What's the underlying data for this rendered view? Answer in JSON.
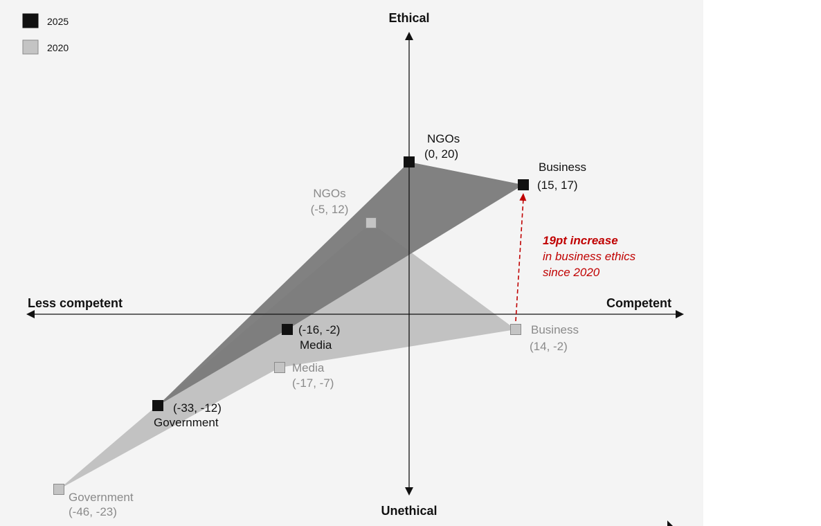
{
  "chart_data": {
    "type": "scatter",
    "title": "",
    "axes": {
      "x_positive": "Competent",
      "x_negative": "Less competent",
      "y_positive": "Ethical",
      "y_negative": "Unethical"
    },
    "xlim": [
      -50,
      35
    ],
    "ylim": [
      -26,
      35
    ],
    "grid": false,
    "legend": "top-left",
    "series": [
      {
        "name": "2025",
        "color": "#111111",
        "fill": "#7a7a7a",
        "points": [
          {
            "label": "NGOs",
            "coord": "(0, 20)",
            "x": 0,
            "y": 20
          },
          {
            "label": "Business",
            "coord": "(15, 17)",
            "x": 15,
            "y": 17
          },
          {
            "label": "Media",
            "coord": "(-16, -2)",
            "x": -16,
            "y": -2
          },
          {
            "label": "Government",
            "coord": "(-33, -12)",
            "x": -33,
            "y": -12
          }
        ]
      },
      {
        "name": "2020",
        "color": "#c4c4c4",
        "fill": "#bfbfbf",
        "points": [
          {
            "label": "NGOs",
            "coord": "(-5, 12)",
            "x": -5,
            "y": 12
          },
          {
            "label": "Business",
            "coord": "(14, -2)",
            "x": 14,
            "y": -2
          },
          {
            "label": "Media",
            "coord": "(-17, -7)",
            "x": -17,
            "y": -7
          },
          {
            "label": "Government",
            "coord": "(-46, -23)",
            "x": -46,
            "y": -23
          }
        ]
      }
    ],
    "annotation": {
      "bold": "19pt increase",
      "line2": "in business ethics",
      "line3": "since 2020",
      "from": [
        14,
        -2
      ],
      "to": [
        15,
        17
      ],
      "color": "#c00000"
    }
  }
}
